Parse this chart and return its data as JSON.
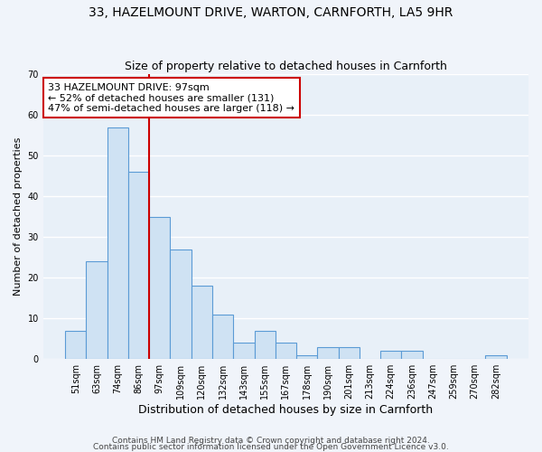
{
  "title1": "33, HAZELMOUNT DRIVE, WARTON, CARNFORTH, LA5 9HR",
  "title2": "Size of property relative to detached houses in Carnforth",
  "xlabel": "Distribution of detached houses by size in Carnforth",
  "ylabel": "Number of detached properties",
  "categories": [
    "51sqm",
    "63sqm",
    "74sqm",
    "86sqm",
    "97sqm",
    "109sqm",
    "120sqm",
    "132sqm",
    "143sqm",
    "155sqm",
    "167sqm",
    "178sqm",
    "190sqm",
    "201sqm",
    "213sqm",
    "224sqm",
    "236sqm",
    "247sqm",
    "259sqm",
    "270sqm",
    "282sqm"
  ],
  "values": [
    7,
    24,
    57,
    46,
    35,
    27,
    18,
    11,
    4,
    7,
    4,
    1,
    3,
    3,
    0,
    2,
    2,
    0,
    0,
    0,
    1
  ],
  "bar_color": "#cfe2f3",
  "bar_edge_color": "#5b9bd5",
  "ref_line_color": "#cc0000",
  "ref_line_x": 3.5,
  "annotation_text": "33 HAZELMOUNT DRIVE: 97sqm\n← 52% of detached houses are smaller (131)\n47% of semi-detached houses are larger (118) →",
  "annotation_box_color": "#ffffff",
  "annotation_box_edge_color": "#cc0000",
  "ylim": [
    0,
    70
  ],
  "yticks": [
    0,
    10,
    20,
    30,
    40,
    50,
    60,
    70
  ],
  "footer1": "Contains HM Land Registry data © Crown copyright and database right 2024.",
  "footer2": "Contains public sector information licensed under the Open Government Licence v3.0.",
  "background_color": "#f0f4fa",
  "plot_background_color": "#e8f0f8",
  "grid_color": "#ffffff",
  "title1_fontsize": 10,
  "title2_fontsize": 9,
  "xlabel_fontsize": 9,
  "ylabel_fontsize": 8,
  "tick_fontsize": 7,
  "annotation_fontsize": 8,
  "footer_fontsize": 6.5
}
